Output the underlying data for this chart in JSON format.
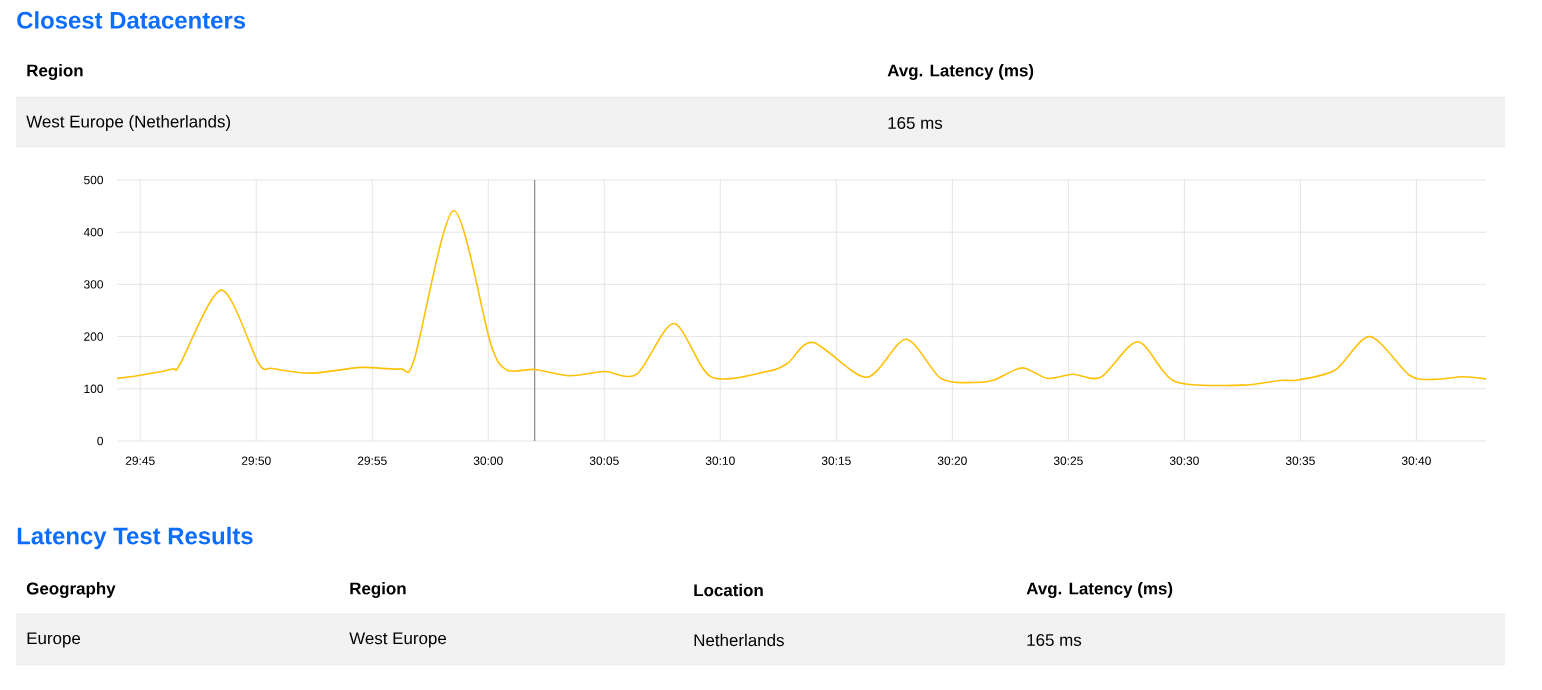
{
  "chart_data": {
    "type": "line",
    "title": "Closest Datacenters",
    "annotations": [
      "Region",
      "Avg. Latency (ms)",
      "West Europe (Netherlands)",
      "165 ms",
      "Latency Test Results",
      "Geography",
      "Region",
      "Location",
      "Avg. Latency (ms)",
      "Europe",
      "West Europe",
      "Netherlands",
      "165 ms"
    ],
    "x": [
      1784.0,
      1785.0,
      1786.4,
      1786.7,
      1788.5,
      1790.1,
      1790.7,
      1792.4,
      1794.5,
      1796.2,
      1796.8,
      1798.5,
      1800.1,
      1800.8,
      1802.0,
      1803.5,
      1805.0,
      1806.4,
      1808.0,
      1809.6,
      1812.0,
      1812.9,
      1814.0,
      1816.3,
      1818.0,
      1819.5,
      1820.9,
      1821.8,
      1823.0,
      1824.1,
      1825.2,
      1826.4,
      1828.0,
      1829.6,
      1832.5,
      1834.1,
      1834.9,
      1836.5,
      1838.0,
      1839.7,
      1840.8,
      1842.0,
      1843.0
    ],
    "series": [
      {
        "color": "#ffc107",
        "values": [
          120,
          126,
          138,
          146,
          289,
          149,
          139,
          130,
          141,
          138,
          155,
          441,
          187,
          136,
          137,
          125,
          133,
          128,
          225,
          123,
          133,
          149,
          189,
          122,
          195,
          120,
          112,
          117,
          140,
          120,
          128,
          122,
          190,
          114,
          107,
          116,
          117,
          136,
          200,
          126,
          118,
          123,
          119
        ]
      }
    ],
    "xlim": [
      1784,
      1843
    ],
    "xticks": [
      {
        "value": 1785,
        "label": "29:45"
      },
      {
        "value": 1790,
        "label": "29:50"
      },
      {
        "value": 1795,
        "label": "29:55"
      },
      {
        "value": 1800,
        "label": "30:00"
      },
      {
        "value": 1805,
        "label": "30:05"
      },
      {
        "value": 1810,
        "label": "30:10"
      },
      {
        "value": 1815,
        "label": "30:15"
      },
      {
        "value": 1820,
        "label": "30:20"
      },
      {
        "value": 1825,
        "label": "30:25"
      },
      {
        "value": 1830,
        "label": "30:30"
      },
      {
        "value": 1835,
        "label": "30:35"
      },
      {
        "value": 1840,
        "label": "30:40"
      }
    ],
    "ylim": [
      0,
      500
    ],
    "yticks": [
      0,
      100,
      200,
      300,
      400,
      500
    ],
    "grid": true,
    "ref_lines": [
      {
        "axis": "x",
        "value": 1802,
        "color": "#888888"
      }
    ]
  }
}
